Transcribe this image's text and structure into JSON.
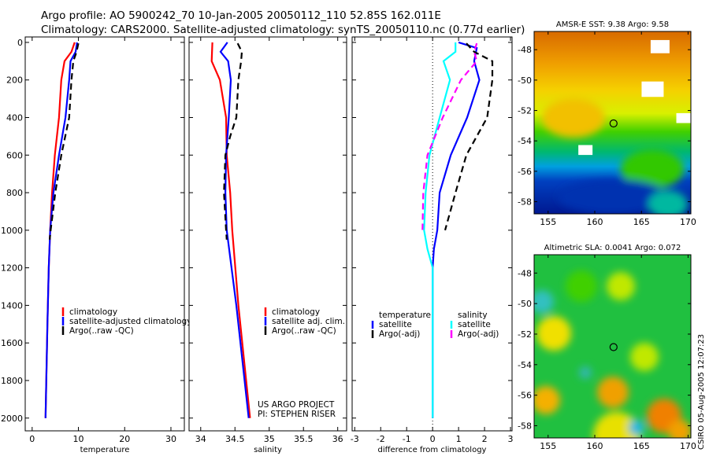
{
  "title_line1": "Argo profile: AO 5900242_70 10-Jan-2005 20050112_110 52.85S 162.011E",
  "title_line2": "Climatology: CARS2000. Satellite-adjusted climatology: synTS_20050110.nc (0.77d earlier)",
  "side_label": "CSIRO 05-Aug-2005 12:07:23",
  "credit": [
    "US ARGO PROJECT",
    "PI: STEPHEN RISER"
  ],
  "colors": {
    "red": "#ff0000",
    "blue": "#0000ff",
    "black": "#000000",
    "cyan": "#00ffff",
    "magenta": "#ff00ff"
  },
  "chart_data": [
    {
      "type": "line",
      "xlabel": "temperature",
      "ylabel": "",
      "xlim": [
        -1.5,
        32.9
      ],
      "ylim": [
        2068,
        -29
      ],
      "xticks": [
        0,
        10,
        20,
        30
      ],
      "yticks": [
        0,
        200,
        400,
        600,
        800,
        1000,
        1200,
        1400,
        1600,
        1800,
        2000
      ],
      "legend": {
        "placement": "center-right",
        "entries": [
          "climatology",
          "satellite-adjusted climatology",
          "Argo(..raw -QC)"
        ]
      },
      "series": [
        {
          "name": "climatology",
          "color": "red",
          "dash": false,
          "depth": [
            0,
            50,
            100,
            200,
            400,
            600,
            800,
            1000,
            1200,
            1500,
            2000
          ],
          "values": [
            9.2,
            8.5,
            7.0,
            6.3,
            5.8,
            4.9,
            4.3,
            3.9,
            3.6,
            3.3,
            2.9
          ]
        },
        {
          "name": "satellite-adjusted climatology",
          "color": "blue",
          "dash": false,
          "depth": [
            0,
            50,
            100,
            200,
            400,
            600,
            800,
            1000,
            1200,
            1500,
            2000
          ],
          "values": [
            9.7,
            9.4,
            8.3,
            8.0,
            7.2,
            5.8,
            4.6,
            3.9,
            3.6,
            3.3,
            2.9
          ]
        },
        {
          "name": "Argo(..raw -QC)",
          "color": "black",
          "dash": true,
          "depth": [
            5,
            50,
            100,
            200,
            400,
            600,
            800,
            1000,
            1050
          ],
          "values": [
            10.0,
            9.6,
            8.9,
            8.5,
            8.0,
            6.3,
            5.0,
            4.0,
            3.8
          ]
        }
      ]
    },
    {
      "type": "line",
      "xlabel": "salinity",
      "ylabel": "",
      "xlim": [
        33.83,
        36.13
      ],
      "ylim": [
        2068,
        -29
      ],
      "xticks": [
        34,
        34.5,
        35,
        35.5,
        36
      ],
      "yticks": [
        0,
        200,
        400,
        600,
        800,
        1000,
        1200,
        1400,
        1600,
        1800,
        2000
      ],
      "legend": {
        "placement": "center-right",
        "entries": [
          "climatology",
          "satellite adj. clim.",
          "Argo(..raw -QC)"
        ]
      },
      "series": [
        {
          "name": "climatology",
          "color": "red",
          "dash": false,
          "depth": [
            0,
            100,
            200,
            400,
            600,
            800,
            1000,
            1400,
            2000
          ],
          "values": [
            34.17,
            34.16,
            34.28,
            34.37,
            34.38,
            34.43,
            34.46,
            34.55,
            34.72
          ]
        },
        {
          "name": "satellite adj. clim.",
          "color": "blue",
          "dash": false,
          "depth": [
            0,
            50,
            100,
            200,
            400,
            600,
            800,
            1000,
            1400,
            2000
          ],
          "values": [
            34.39,
            34.29,
            34.4,
            34.44,
            34.41,
            34.37,
            34.36,
            34.38,
            34.52,
            34.7
          ]
        },
        {
          "name": "Argo(..raw -QC)",
          "color": "black",
          "dash": true,
          "depth": [
            5,
            50,
            100,
            200,
            400,
            500,
            600,
            800,
            1000,
            1050
          ],
          "values": [
            34.54,
            34.6,
            34.59,
            34.55,
            34.52,
            34.43,
            34.36,
            34.34,
            34.37,
            34.38
          ]
        }
      ]
    },
    {
      "type": "line",
      "xlabel": "difference from climatology",
      "ylabel": "",
      "xlim": [
        -3.1,
        3.06
      ],
      "ylim": [
        2068,
        -29
      ],
      "xticks": [
        -3,
        -2,
        -1,
        0,
        1,
        2,
        3
      ],
      "yticks": [
        0,
        200,
        400,
        600,
        800,
        1000,
        1200,
        1400,
        1600,
        1800,
        2000
      ],
      "legend": {
        "placement": "center",
        "groups": [
          {
            "heading": "temperature",
            "entries": [
              "satellite",
              "Argo(-adj)"
            ]
          },
          {
            "heading": "salinity",
            "entries": [
              "satellite",
              "Argo(-adj)"
            ]
          }
        ]
      },
      "series": [
        {
          "name": "temperature satellite",
          "color": "blue",
          "dash": false,
          "depth": [
            0,
            30,
            100,
            200,
            400,
            600,
            800,
            1000,
            1100,
            1200,
            2000
          ],
          "values": [
            1.0,
            1.7,
            1.6,
            1.8,
            1.33,
            0.7,
            0.27,
            0.18,
            0.05,
            0,
            0
          ]
        },
        {
          "name": "temperature Argo(-adj)",
          "color": "black",
          "dash": true,
          "depth": [
            5,
            50,
            100,
            200,
            400,
            600,
            800,
            1000
          ],
          "values": [
            1.3,
            1.6,
            2.3,
            2.3,
            2.1,
            1.3,
            0.88,
            0.48
          ]
        },
        {
          "name": "salinity satellite",
          "color": "cyan",
          "dash": false,
          "depth": [
            0,
            50,
            100,
            200,
            400,
            600,
            800,
            1000,
            1100,
            1200,
            2000
          ],
          "values": [
            0.88,
            0.88,
            0.42,
            0.67,
            0.27,
            -0.12,
            -0.27,
            -0.33,
            -0.2,
            0,
            0
          ]
        },
        {
          "name": "salinity Argo(-adj)",
          "color": "magenta",
          "dash": true,
          "depth": [
            5,
            50,
            100,
            200,
            400,
            600,
            800,
            1000
          ],
          "values": [
            1.7,
            1.6,
            1.7,
            1.09,
            0.39,
            -0.2,
            -0.36,
            -0.39
          ]
        }
      ]
    },
    {
      "type": "heatmap",
      "title": "AMSR-E SST: 9.38 Argo: 9.58",
      "xlim": [
        153.5,
        170.3
      ],
      "ylim": [
        -58.8,
        -46.8
      ],
      "xticks": [
        155,
        160,
        165,
        170
      ],
      "yticks": [
        -48,
        -50,
        -52,
        -54,
        -56,
        -58
      ],
      "marker": {
        "lon": 162.011,
        "lat": -52.85
      }
    },
    {
      "type": "heatmap",
      "title": "Altimetric SLA: 0.0041 Argo: 0.072",
      "xlim": [
        153.5,
        170.3
      ],
      "ylim": [
        -58.8,
        -46.8
      ],
      "xticks": [
        155,
        160,
        165,
        170
      ],
      "yticks": [
        -48,
        -50,
        -52,
        -54,
        -56,
        -58
      ],
      "marker": {
        "lon": 162.011,
        "lat": -52.85
      }
    }
  ]
}
